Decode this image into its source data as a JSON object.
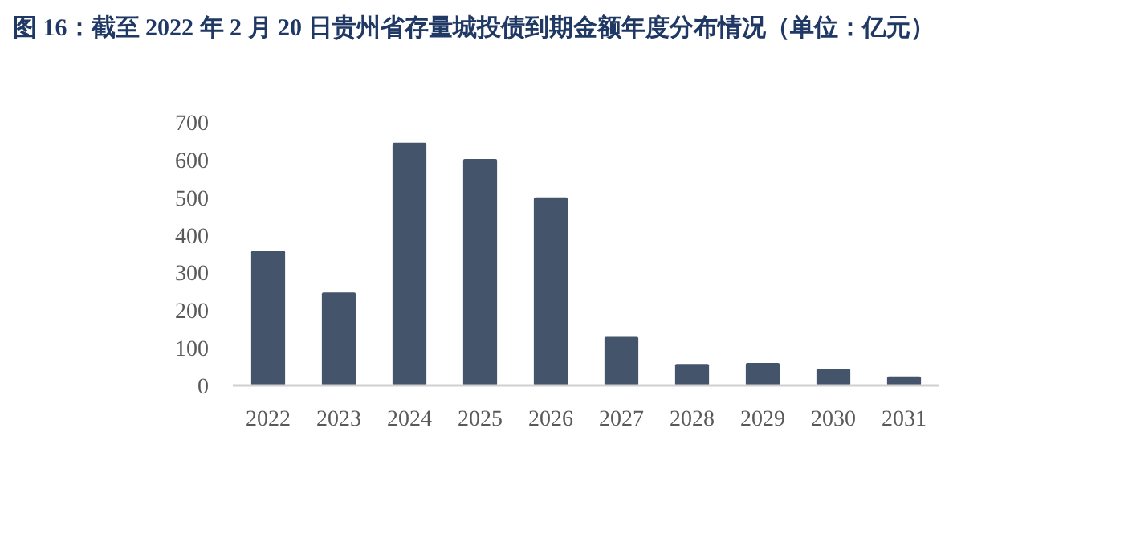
{
  "chart_data": {
    "type": "bar",
    "title": "图 16：截至 2022 年 2 月 20 日贵州省存量城投债到期金额年度分布情况（单位：亿元）",
    "categories": [
      "2022",
      "2023",
      "2024",
      "2025",
      "2026",
      "2027",
      "2028",
      "2029",
      "2030",
      "2031"
    ],
    "values": [
      358,
      247,
      645,
      602,
      500,
      129,
      57,
      60,
      45,
      24
    ],
    "color": "#44546a",
    "ylim": [
      0,
      700
    ],
    "yticks": [
      0,
      100,
      200,
      300,
      400,
      500,
      600,
      700
    ],
    "grid": false
  }
}
